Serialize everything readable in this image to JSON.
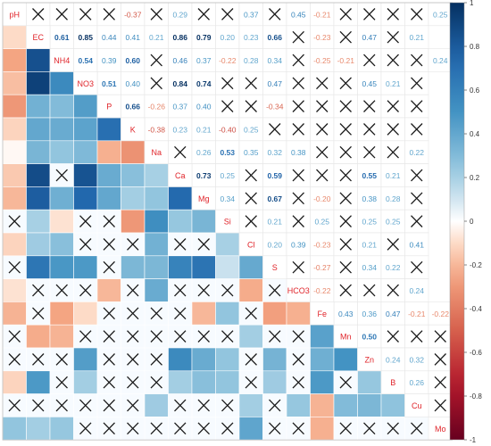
{
  "chart_data": {
    "type": "heatmap",
    "variables": [
      "pH",
      "EC",
      "NH4",
      "NO3",
      "P",
      "K",
      "Na",
      "Ca",
      "Mg",
      "Si",
      "Cl",
      "S",
      "HCO3",
      "Fe",
      "Mn",
      "Zn",
      "B",
      "Cu",
      "Mo"
    ],
    "upper": [
      [
        null,
        null,
        null,
        null,
        -0.37,
        null,
        0.29,
        null,
        null,
        0.37,
        null,
        0.45,
        -0.21,
        null,
        null,
        null,
        null,
        0.25
      ],
      [
        0.61,
        0.85,
        0.44,
        0.41,
        0.21,
        0.86,
        0.79,
        0.2,
        0.23,
        0.66,
        null,
        -0.23,
        null,
        0.47,
        null,
        0.21
      ],
      [
        0.54,
        0.39,
        0.6,
        null,
        0.46,
        0.37,
        -0.22,
        0.28,
        0.34,
        null,
        -0.25,
        -0.21,
        null,
        null,
        null,
        0.24
      ],
      [
        0.51,
        0.4,
        null,
        0.84,
        0.74,
        null,
        null,
        0.47,
        null,
        null,
        null,
        0.45,
        0.21,
        null
      ],
      [
        0.66,
        -0.26,
        0.37,
        0.4,
        null,
        null,
        -0.34,
        null,
        null,
        null,
        null,
        null,
        null
      ],
      [
        -0.38,
        0.23,
        0.21,
        -0.4,
        0.25,
        null,
        null,
        null,
        null,
        null,
        null,
        null
      ],
      [
        null,
        0.26,
        0.53,
        0.35,
        0.32,
        0.38,
        null,
        null,
        null,
        null,
        0.22
      ],
      [
        0.73,
        0.25,
        null,
        0.59,
        null,
        null,
        null,
        0.55,
        0.21,
        null
      ],
      [
        0.34,
        null,
        0.67,
        null,
        -0.2,
        null,
        0.38,
        0.28,
        null
      ],
      [
        null,
        0.21,
        null,
        0.25,
        null,
        0.25,
        0.25,
        null
      ],
      [
        0.2,
        0.39,
        -0.23,
        null,
        0.21,
        null,
        0.41
      ],
      [
        null,
        -0.27,
        null,
        0.34,
        0.22,
        null
      ],
      [
        -0.22,
        null,
        null,
        null,
        0.24
      ],
      [
        0.43,
        0.36,
        0.47,
        -0.21,
        -0.22
      ],
      [
        0.5,
        null,
        null,
        null
      ],
      [
        0.24,
        0.32,
        null
      ],
      [
        0.26,
        null
      ],
      [
        null
      ]
    ],
    "lower": [
      [
        -0.1
      ],
      [
        -0.25,
        0.85
      ],
      [
        -0.18,
        0.92,
        0.55
      ],
      [
        -0.3,
        0.35,
        0.3,
        0.45
      ],
      [
        -0.12,
        0.4,
        0.38,
        0.42,
        0.7
      ],
      [
        -0.02,
        0.33,
        0.25,
        0.31,
        -0.22,
        -0.32
      ],
      [
        -0.15,
        0.87,
        null,
        0.84,
        0.38,
        0.28,
        0.2
      ],
      [
        -0.2,
        0.79,
        0.36,
        0.74,
        0.4,
        0.21,
        0.25,
        0.73
      ],
      [
        null,
        0.2,
        -0.08,
        null,
        null,
        -0.3,
        0.53,
        0.24,
        0.33
      ],
      [
        -0.12,
        0.22,
        0.28,
        null,
        null,
        null,
        0.35,
        null,
        null,
        0.2
      ],
      [
        null,
        0.66,
        0.48,
        0.47,
        null,
        0.32,
        0.32,
        0.59,
        0.67,
        0.12,
        0.39
      ],
      [
        -0.08,
        null,
        null,
        null,
        -0.2,
        null,
        0.38,
        null,
        null,
        null,
        -0.23,
        null
      ],
      [
        -0.21,
        null,
        -0.25,
        -0.1,
        null,
        null,
        null,
        null,
        -0.2,
        0.25,
        null,
        -0.27,
        -0.22
      ],
      [
        null,
        -0.23,
        -0.21,
        null,
        null,
        null,
        null,
        null,
        null,
        null,
        0.21,
        null,
        null,
        0.43
      ],
      [
        null,
        null,
        null,
        0.45,
        null,
        null,
        null,
        0.55,
        0.38,
        0.25,
        null,
        0.34,
        null,
        0.36,
        0.5
      ],
      [
        -0.12,
        0.47,
        null,
        0.21,
        null,
        null,
        null,
        0.21,
        0.28,
        0.25,
        null,
        0.22,
        null,
        0.47,
        null,
        0.24
      ],
      [
        null,
        null,
        null,
        null,
        null,
        null,
        0.22,
        null,
        null,
        null,
        0.21,
        null,
        0.24,
        -0.21,
        0.3,
        0.32,
        0.26
      ],
      [
        0.25,
        0.21,
        0.24,
        null,
        null,
        null,
        null,
        null,
        null,
        null,
        0.41,
        null,
        null,
        -0.22,
        null,
        null,
        null,
        null
      ]
    ],
    "colorbar_ticks": [
      1,
      0.8,
      0.6,
      0.4,
      0.2,
      0,
      -0.2,
      -0.4,
      -0.6,
      -0.8,
      -1
    ],
    "colorbar_range": [
      -1,
      1
    ],
    "colors": {
      "positive": "#053061",
      "mid": "#ffffff",
      "negative": "#67001f",
      "diag_label": "#e0242a",
      "cross": "#1a1a1a"
    }
  }
}
